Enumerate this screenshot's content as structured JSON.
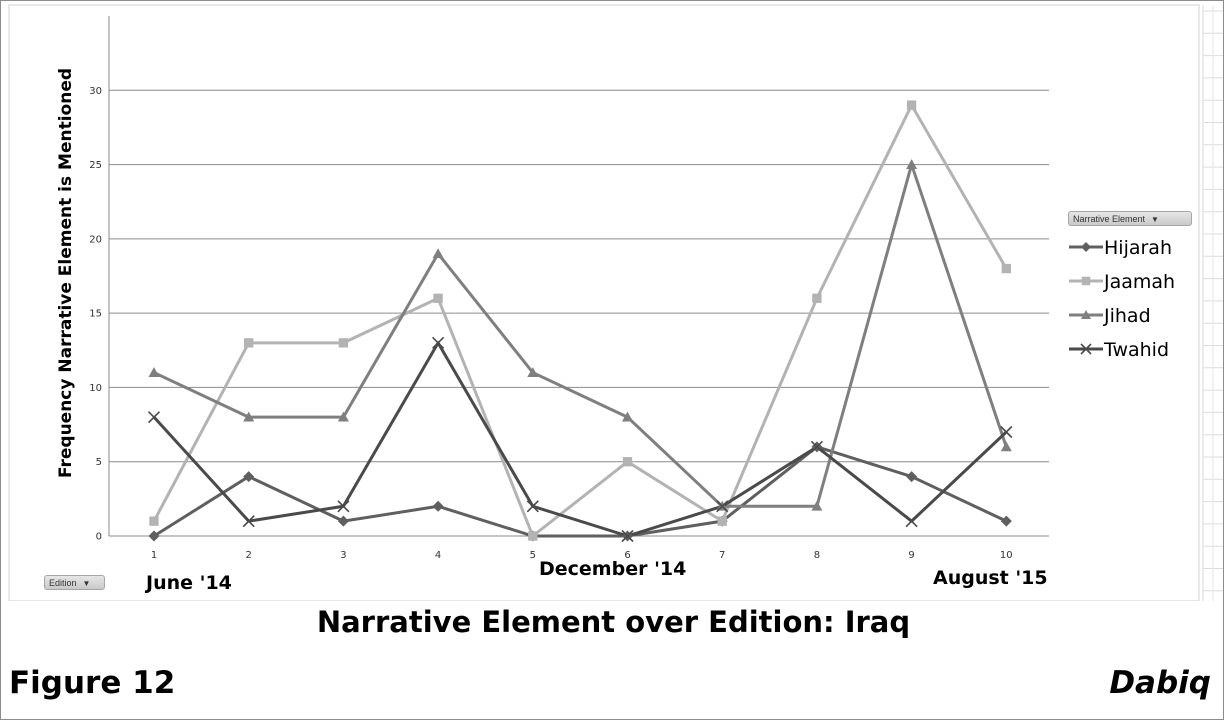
{
  "chart_data": {
    "type": "line",
    "title": "",
    "xlabel": "",
    "ylabel": "Frequency Narrative Element is Mentioned",
    "categories": [
      "1",
      "2",
      "3",
      "4",
      "5",
      "6",
      "7",
      "8",
      "9",
      "10"
    ],
    "y_ticks": [
      "0",
      "5",
      "10",
      "15",
      "20",
      "25",
      "30"
    ],
    "ylim": [
      0,
      35
    ],
    "grid": "horizontal",
    "legend_position": "right",
    "legend_title": "Narrative Element",
    "series": [
      {
        "name": "Hijarah",
        "marker": "diamond",
        "color": "#5f5f5f",
        "values": [
          0,
          4,
          1,
          2,
          0,
          0,
          1,
          6,
          4,
          1
        ]
      },
      {
        "name": "Jaamah",
        "marker": "square",
        "color": "#b3b3b3",
        "values": [
          1,
          13,
          13,
          16,
          0,
          5,
          1,
          16,
          29,
          18
        ]
      },
      {
        "name": "Jihad",
        "marker": "triangle",
        "color": "#7f7f7f",
        "values": [
          11,
          8,
          8,
          19,
          11,
          8,
          2,
          2,
          25,
          6
        ]
      },
      {
        "name": "Twahid",
        "marker": "x",
        "color": "#4a4a4a",
        "values": [
          8,
          1,
          2,
          13,
          2,
          0,
          2,
          6,
          1,
          7
        ]
      }
    ],
    "annotations": [
      "June '14",
      "December '14",
      "August '15"
    ]
  },
  "filter_buttons": {
    "legend": "Narrative Element",
    "axis": "Edition"
  },
  "caption": "Narrative Element over Edition: Iraq",
  "figure_label": "Figure 12",
  "source_label": "Dabiq"
}
